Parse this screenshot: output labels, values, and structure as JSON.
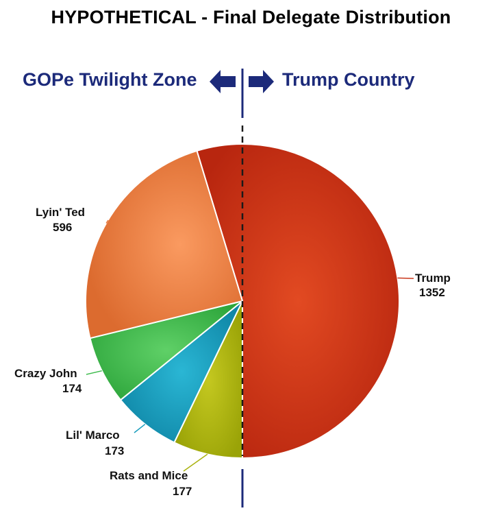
{
  "title": "HYPOTHETICAL - Final Delegate Distribution",
  "zones": {
    "left": "GOPe Twilight Zone",
    "right": "Trump Country"
  },
  "chart_data": {
    "type": "pie",
    "title": "HYPOTHETICAL - Final Delegate Distribution",
    "slices": [
      {
        "label": "Trump",
        "value": 1352,
        "value_label": "1352",
        "color": "#c9361a"
      },
      {
        "label": "Rats and Mice",
        "value": 177,
        "value_label": "177",
        "color": "#aab20e"
      },
      {
        "label": "Lil' Marco",
        "value": 173,
        "value_label": "173",
        "color": "#1a9dbd"
      },
      {
        "label": "Crazy John",
        "value": 174,
        "value_label": "174",
        "color": "#3dbb4c"
      },
      {
        "label": "Lyin' Ted",
        "value": 596,
        "value_label": "596",
        "color": "#e9783c"
      }
    ],
    "colors": {
      "accent": "#1c2a7a"
    }
  }
}
